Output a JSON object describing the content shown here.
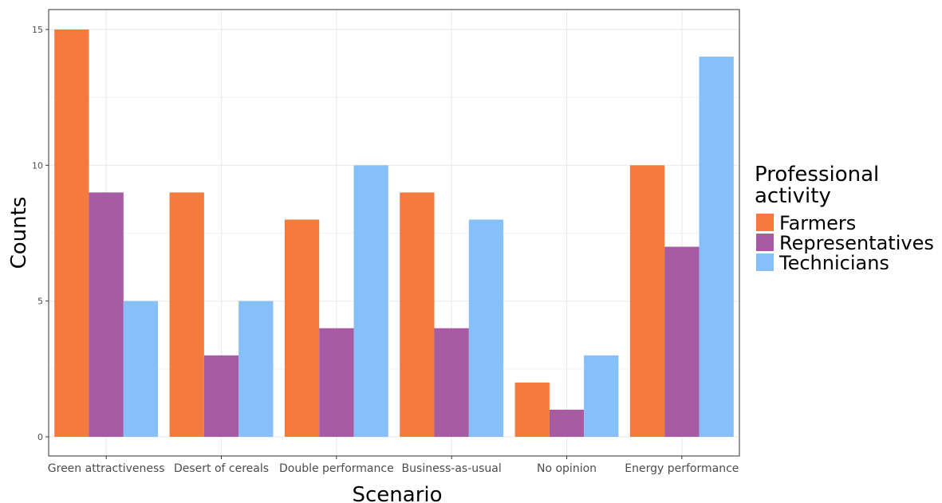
{
  "chart_data": {
    "type": "bar",
    "xlabel": "Scenario",
    "ylabel": "Counts",
    "ylim": [
      0,
      15.8
    ],
    "yticks": [
      "0",
      "5",
      "10",
      "15"
    ],
    "grid": true,
    "legend_placement": "right",
    "legend_title_lines": [
      "Professional",
      "activity"
    ],
    "categories": [
      "Green attractiveness",
      "Desert of cereals",
      "Double performance",
      "Business-as-usual",
      "No opinion",
      "Energy performance"
    ],
    "series": [
      {
        "name": "Farmers",
        "color": "#f57a3d",
        "values": [
          15,
          9,
          8,
          9,
          2,
          10
        ]
      },
      {
        "name": "Representatives",
        "color": "#a65ba2",
        "values": [
          9,
          3,
          4,
          4,
          1,
          7
        ]
      },
      {
        "name": "Technicians",
        "color": "#87bff8",
        "values": [
          5,
          5,
          10,
          8,
          3,
          14
        ]
      }
    ]
  }
}
